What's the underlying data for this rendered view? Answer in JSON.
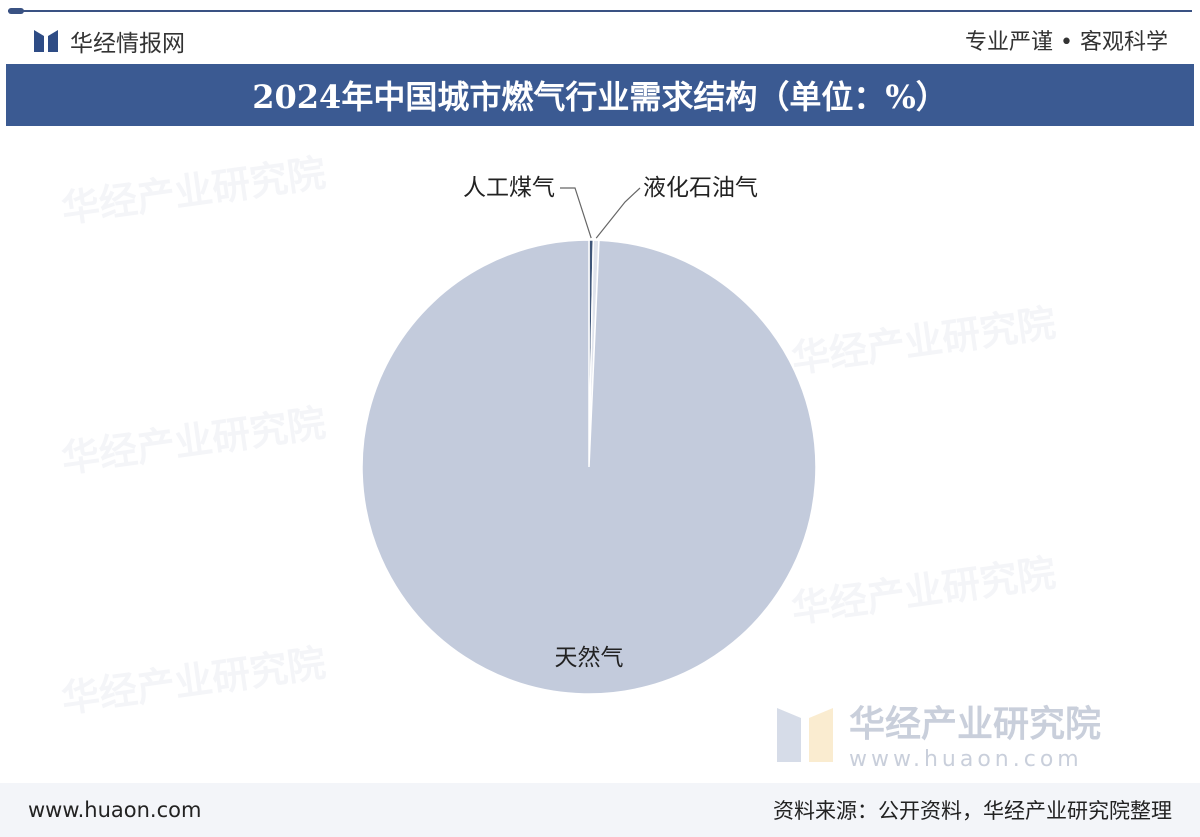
{
  "header": {
    "brand": "华经情报网",
    "slogan": "专业严谨 • 客观科学",
    "title": "2024年中国城市燃气行业需求结构（单位：%）"
  },
  "watermark": {
    "name": "华经产业研究院",
    "url": "www.huaon.com"
  },
  "footer": {
    "website": "www.huaon.com",
    "source": "资料来源：公开资料，华经产业研究院整理"
  },
  "chart_data": {
    "type": "pie",
    "title": "2024年中国城市燃气行业需求结构（单位：%）",
    "categories": [
      "人工煤气",
      "液化石油气",
      "天然气"
    ],
    "values": [
      0.3,
      0.4,
      99.3
    ],
    "colors": [
      "#3f5679",
      "#dfe3ec",
      "#c3cbdc"
    ],
    "legend": "none"
  }
}
